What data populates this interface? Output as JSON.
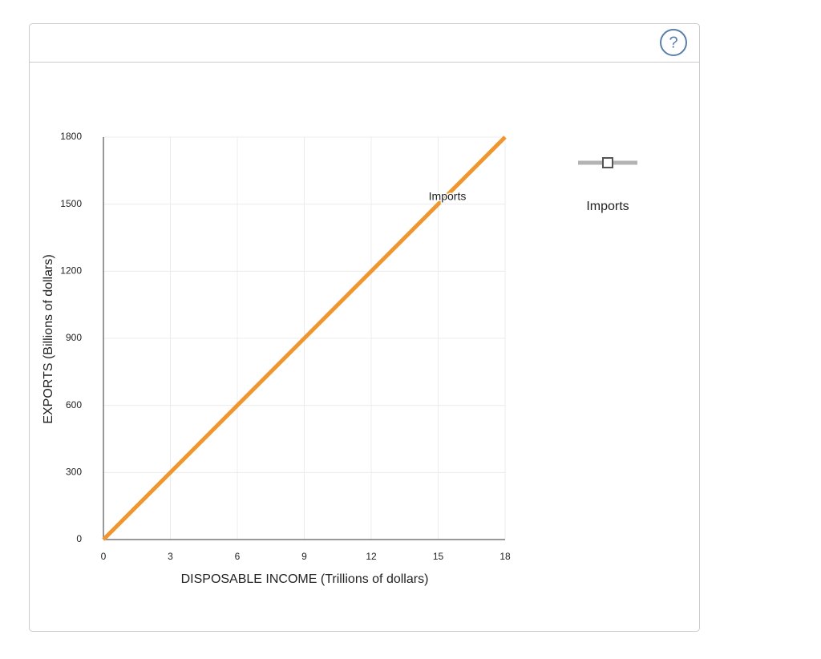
{
  "help": "?",
  "chart_data": {
    "type": "line",
    "x_label": "DISPOSABLE INCOME (Trillions of dollars)",
    "y_label": "EXPORTS (Billions of dollars)",
    "x": [
      0,
      18
    ],
    "series": [
      {
        "name": "Imports",
        "color": "#f0962e",
        "values": [
          0,
          1800
        ]
      }
    ],
    "xlim": [
      0,
      18
    ],
    "xticks": [
      0,
      3,
      6,
      9,
      12,
      15,
      18
    ],
    "ylim": [
      0,
      1800
    ],
    "yticks": [
      0,
      300,
      600,
      900,
      1200,
      1500,
      1800
    ],
    "grid": true
  }
}
